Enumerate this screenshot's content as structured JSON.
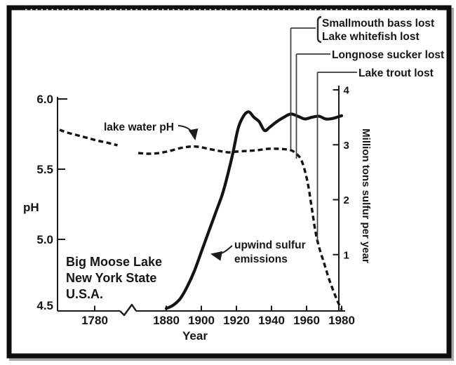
{
  "chart_data": {
    "type": "line",
    "title": "",
    "xlabel": "Year",
    "ylabel_left": "pH",
    "ylabel_right": "Million tons sulfur per year",
    "location_label": [
      "Big Moose Lake",
      "New York State",
      "U.S.A."
    ],
    "x_ticks": [
      1780,
      1880,
      1900,
      1920,
      1940,
      1960,
      1980
    ],
    "x_axis_break_between": [
      1795,
      1862
    ],
    "y_left_ticks": [
      6.0,
      5.5,
      5.0,
      4.5
    ],
    "y_left_range": [
      4.5,
      6.0
    ],
    "y_right_ticks": [
      4,
      3,
      2,
      1
    ],
    "y_right_range": [
      0,
      4
    ],
    "grid": false,
    "series": [
      {
        "name": "lake water pH",
        "label": "lake water pH",
        "axis": "left",
        "line_style": "dashed",
        "segments": [
          [
            [
              1760,
              5.78
            ],
            [
              1764,
              5.762
            ],
            [
              1770,
              5.742
            ],
            [
              1776,
              5.722
            ],
            [
              1782,
              5.702
            ],
            [
              1788,
              5.686
            ],
            [
              1793,
              5.67
            ]
          ],
          [
            [
              1864,
              5.615
            ],
            [
              1870,
              5.61
            ],
            [
              1876,
              5.615
            ],
            [
              1882,
              5.63
            ],
            [
              1888,
              5.65
            ],
            [
              1893,
              5.66
            ],
            [
              1898,
              5.66
            ],
            [
              1904,
              5.645
            ],
            [
              1910,
              5.63
            ],
            [
              1915,
              5.62
            ],
            [
              1920,
              5.625
            ],
            [
              1926,
              5.63
            ],
            [
              1932,
              5.635
            ],
            [
              1938,
              5.645
            ],
            [
              1944,
              5.645
            ],
            [
              1949,
              5.64
            ],
            [
              1952,
              5.63
            ],
            [
              1955,
              5.6
            ],
            [
              1957,
              5.565
            ],
            [
              1959,
              5.49
            ],
            [
              1961,
              5.38
            ],
            [
              1963,
              5.22
            ],
            [
              1965,
              5.06
            ],
            [
              1967,
              4.95
            ],
            [
              1970,
              4.83
            ],
            [
              1973,
              4.71
            ],
            [
              1976,
              4.61
            ],
            [
              1978,
              4.55
            ],
            [
              1980,
              4.5
            ]
          ]
        ]
      },
      {
        "name": "upwind sulfur emissions",
        "label_lines": [
          "upwind sulfur",
          "emissions"
        ],
        "axis": "right",
        "line_style": "solid",
        "points": [
          [
            1880,
            0.02
          ],
          [
            1884,
            0.08
          ],
          [
            1888,
            0.2
          ],
          [
            1892,
            0.42
          ],
          [
            1896,
            0.7
          ],
          [
            1900,
            1.05
          ],
          [
            1904,
            1.4
          ],
          [
            1908,
            1.75
          ],
          [
            1912,
            2.1
          ],
          [
            1915,
            2.45
          ],
          [
            1918,
            2.85
          ],
          [
            1921,
            3.3
          ],
          [
            1924,
            3.52
          ],
          [
            1927,
            3.6
          ],
          [
            1930,
            3.5
          ],
          [
            1933,
            3.42
          ],
          [
            1936,
            3.26
          ],
          [
            1939,
            3.32
          ],
          [
            1943,
            3.42
          ],
          [
            1947,
            3.5
          ],
          [
            1951,
            3.56
          ],
          [
            1955,
            3.52
          ],
          [
            1959,
            3.47
          ],
          [
            1963,
            3.5
          ],
          [
            1967,
            3.52
          ],
          [
            1971,
            3.47
          ],
          [
            1975,
            3.48
          ],
          [
            1980,
            3.53
          ]
        ]
      }
    ],
    "events": [
      {
        "label": "Smallmouth bass lost",
        "year": 1951
      },
      {
        "label": "Lake whitefish lost",
        "year": 1951
      },
      {
        "label": "Longnose sucker lost",
        "year": 1954
      },
      {
        "label": "Lake trout lost",
        "year": 1966
      }
    ]
  }
}
